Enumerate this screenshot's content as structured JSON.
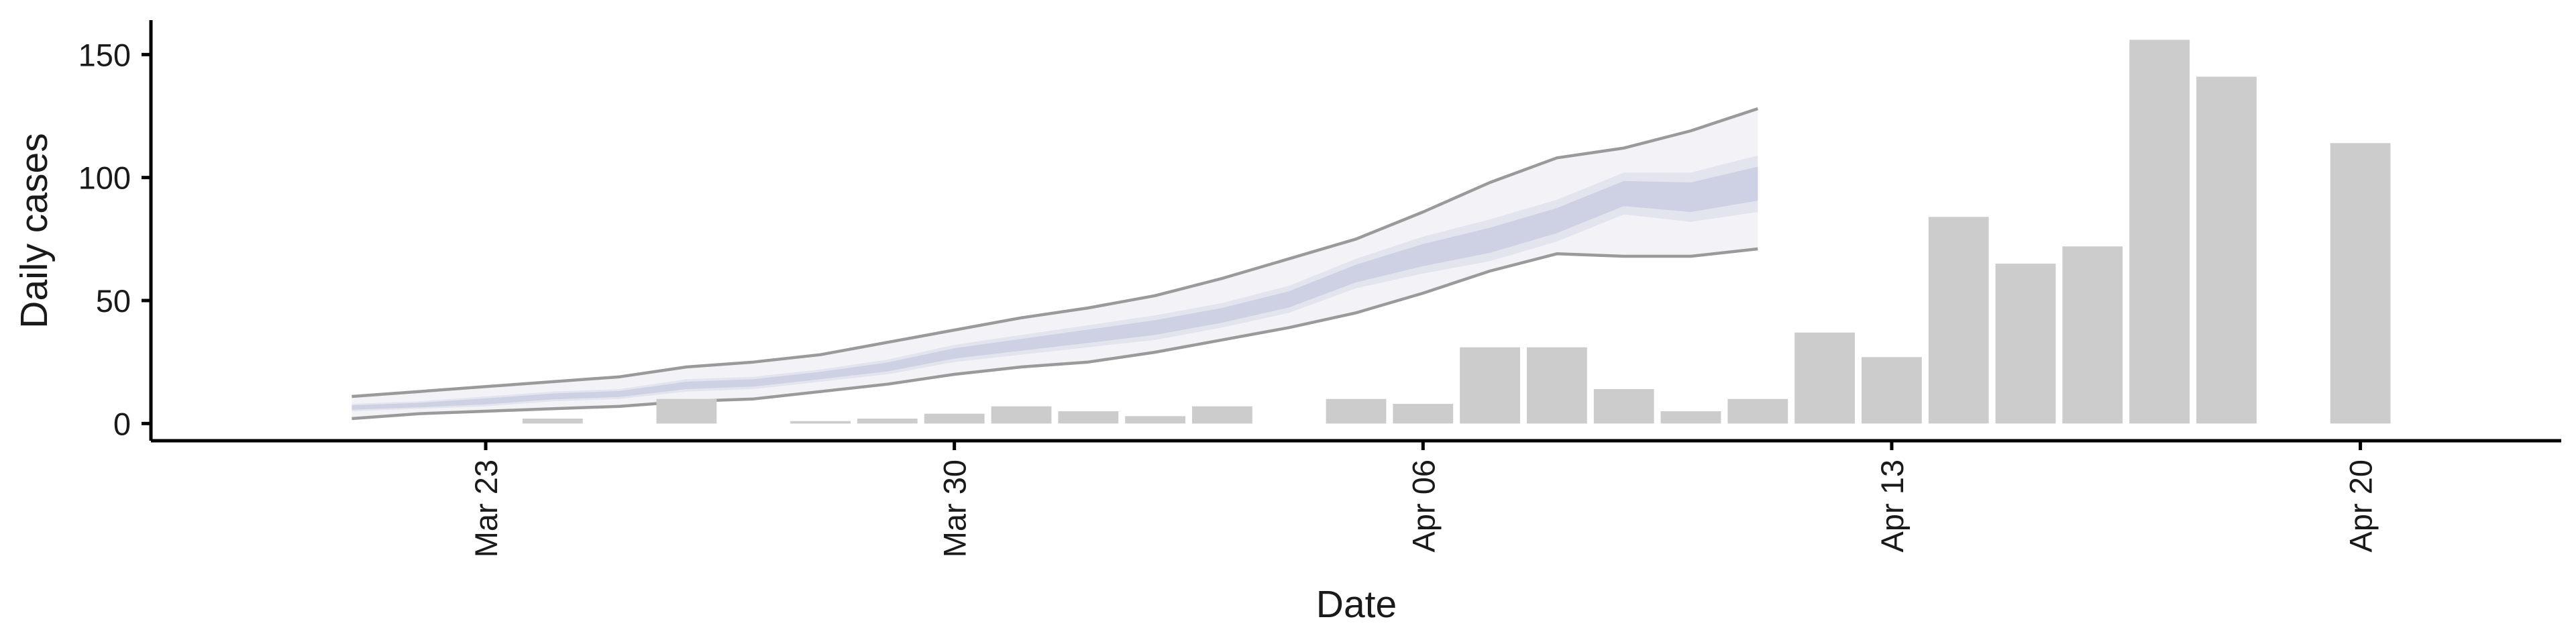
{
  "chart_data": {
    "type": "bar",
    "xlabel": "Date",
    "ylabel": "Daily cases",
    "ylim": [
      -7,
      164
    ],
    "x_range": [
      "2020-03-18",
      "2020-04-23"
    ],
    "y_ticks": [
      0,
      50,
      100,
      150
    ],
    "x_ticks": [
      {
        "date": "2020-03-23",
        "label": "Mar 23"
      },
      {
        "date": "2020-03-30",
        "label": "Mar 30"
      },
      {
        "date": "2020-04-06",
        "label": "Apr 06"
      },
      {
        "date": "2020-04-13",
        "label": "Apr 13"
      },
      {
        "date": "2020-04-20",
        "label": "Apr 20"
      }
    ],
    "bars": [
      {
        "date": "2020-03-24",
        "value": 2
      },
      {
        "date": "2020-03-26",
        "value": 10
      },
      {
        "date": "2020-03-28",
        "value": 1
      },
      {
        "date": "2020-03-29",
        "value": 2
      },
      {
        "date": "2020-03-30",
        "value": 4
      },
      {
        "date": "2020-03-31",
        "value": 7
      },
      {
        "date": "2020-04-01",
        "value": 5
      },
      {
        "date": "2020-04-02",
        "value": 3
      },
      {
        "date": "2020-04-03",
        "value": 7
      },
      {
        "date": "2020-04-05",
        "value": 10
      },
      {
        "date": "2020-04-06",
        "value": 8
      },
      {
        "date": "2020-04-07",
        "value": 31
      },
      {
        "date": "2020-04-08",
        "value": 31
      },
      {
        "date": "2020-04-09",
        "value": 14
      },
      {
        "date": "2020-04-10",
        "value": 5
      },
      {
        "date": "2020-04-11",
        "value": 10
      },
      {
        "date": "2020-04-12",
        "value": 37
      },
      {
        "date": "2020-04-13",
        "value": 27
      },
      {
        "date": "2020-04-14",
        "value": 84
      },
      {
        "date": "2020-04-15",
        "value": 65
      },
      {
        "date": "2020-04-16",
        "value": 72
      },
      {
        "date": "2020-04-17",
        "value": 156
      },
      {
        "date": "2020-04-18",
        "value": 141
      },
      {
        "date": "2020-04-20",
        "value": 114
      }
    ],
    "forecast": {
      "dates": [
        "2020-03-21",
        "2020-03-22",
        "2020-03-23",
        "2020-03-24",
        "2020-03-25",
        "2020-03-26",
        "2020-03-27",
        "2020-03-28",
        "2020-03-29",
        "2020-03-30",
        "2020-03-31",
        "2020-04-01",
        "2020-04-02",
        "2020-04-03",
        "2020-04-04",
        "2020-04-05",
        "2020-04-06",
        "2020-04-07",
        "2020-04-08",
        "2020-04-09",
        "2020-04-10",
        "2020-04-11"
      ],
      "lower_outer": [
        2,
        4,
        5,
        6,
        7,
        9,
        10,
        13,
        16,
        20,
        23,
        25,
        29,
        34,
        39,
        45,
        53,
        62,
        69,
        68,
        68,
        71
      ],
      "lower_mid": [
        5,
        6,
        7,
        9,
        10,
        13,
        14,
        17,
        20,
        25,
        28,
        31,
        34,
        39,
        45,
        55,
        61,
        66,
        74,
        85,
        82,
        86
      ],
      "upper_mid": [
        8,
        9,
        11,
        13,
        14,
        18,
        19,
        22,
        26,
        32,
        36,
        40,
        44,
        49,
        56,
        67,
        76,
        83,
        91,
        102,
        102,
        109
      ],
      "upper_outer": [
        11,
        13,
        15,
        17,
        19,
        23,
        25,
        28,
        33,
        38,
        43,
        47,
        52,
        59,
        67,
        75,
        86,
        98,
        108,
        112,
        119,
        128
      ]
    }
  }
}
